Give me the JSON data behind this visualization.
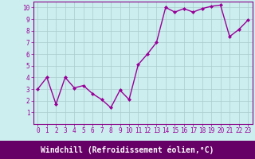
{
  "x": [
    0,
    1,
    2,
    3,
    4,
    5,
    6,
    7,
    8,
    9,
    10,
    11,
    12,
    13,
    14,
    15,
    16,
    17,
    18,
    19,
    20,
    21,
    22,
    23
  ],
  "y": [
    3.0,
    4.0,
    1.7,
    4.0,
    3.1,
    3.3,
    2.6,
    2.1,
    1.4,
    2.9,
    2.1,
    5.1,
    6.0,
    7.0,
    10.0,
    9.6,
    9.9,
    9.6,
    9.9,
    10.1,
    10.2,
    7.5,
    8.1,
    8.9
  ],
  "line_color": "#990099",
  "marker": "D",
  "marker_size": 2.0,
  "background_color": "#cceeee",
  "grid_color": "#aacccc",
  "xlabel": "Windchill (Refroidissement éolien,°C)",
  "xlabel_bg": "#660066",
  "xlabel_color": "white",
  "ylim": [
    0,
    10.5
  ],
  "xlim": [
    -0.5,
    23.5
  ],
  "yticks": [
    1,
    2,
    3,
    4,
    5,
    6,
    7,
    8,
    9,
    10
  ],
  "xticks": [
    0,
    1,
    2,
    3,
    4,
    5,
    6,
    7,
    8,
    9,
    10,
    11,
    12,
    13,
    14,
    15,
    16,
    17,
    18,
    19,
    20,
    21,
    22,
    23
  ],
  "tick_label_fontsize": 5.5,
  "xlabel_fontsize": 7.0,
  "line_width": 1.0,
  "spine_color": "#880088"
}
